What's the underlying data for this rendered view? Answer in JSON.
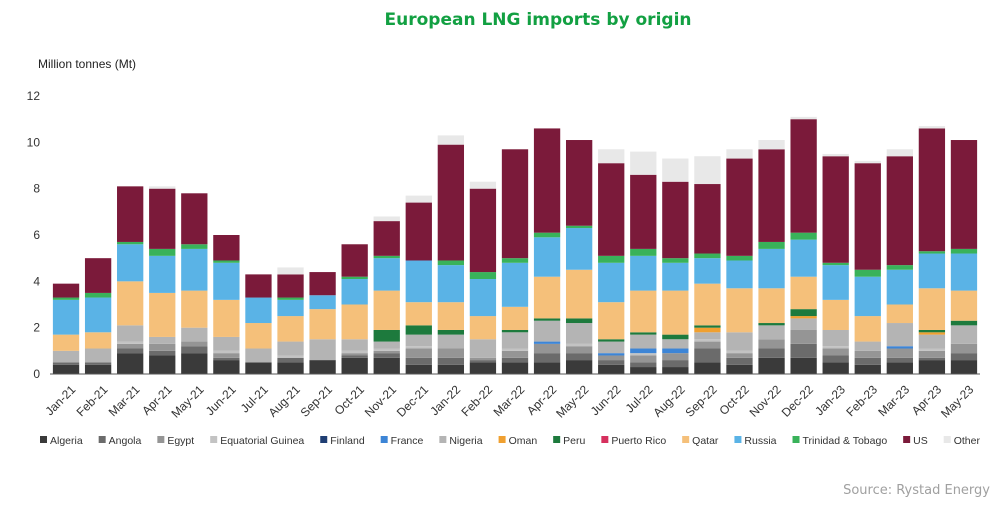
{
  "chart_data": {
    "type": "bar",
    "stacked": true,
    "title": "European LNG imports by origin",
    "ylabel": "Million tonnes (Mt)",
    "xlabel": "",
    "ylim": [
      0,
      12
    ],
    "yticks": [
      0,
      2,
      4,
      6,
      8,
      10,
      12
    ],
    "grid": false,
    "legend_position": "bottom",
    "source": "Source: Rystad Energy",
    "categories": [
      "Jan-21",
      "Feb-21",
      "Mar-21",
      "Apr-21",
      "May-21",
      "Jun-21",
      "Jul-21",
      "Aug-21",
      "Sep-21",
      "Oct-21",
      "Nov-21",
      "Dec-21",
      "Jan-22",
      "Feb-22",
      "Mar-22",
      "Apr-22",
      "May-22",
      "Jun-22",
      "Jul-22",
      "Aug-22",
      "Sep-22",
      "Oct-22",
      "Nov-22",
      "Dec-22",
      "Jan-23",
      "Feb-23",
      "Mar-23",
      "Apr-23",
      "May-23"
    ],
    "series": [
      {
        "name": "Algeria",
        "color": "#3a3a3a",
        "values": [
          0.4,
          0.4,
          0.9,
          0.8,
          0.9,
          0.6,
          0.5,
          0.5,
          0.6,
          0.7,
          0.7,
          0.4,
          0.4,
          0.5,
          0.5,
          0.5,
          0.6,
          0.4,
          0.3,
          0.3,
          0.5,
          0.4,
          0.7,
          0.7,
          0.5,
          0.4,
          0.5,
          0.6,
          0.6
        ]
      },
      {
        "name": "Angola",
        "color": "#6b6b6b",
        "values": [
          0.1,
          0.1,
          0.2,
          0.2,
          0.3,
          0.1,
          0.0,
          0.2,
          0.0,
          0.1,
          0.2,
          0.3,
          0.3,
          0.1,
          0.2,
          0.4,
          0.3,
          0.2,
          0.2,
          0.3,
          0.6,
          0.3,
          0.4,
          0.6,
          0.3,
          0.3,
          0.2,
          0.1,
          0.3
        ]
      },
      {
        "name": "Egypt",
        "color": "#959595",
        "values": [
          0.0,
          0.0,
          0.2,
          0.3,
          0.2,
          0.2,
          0.0,
          0.0,
          0.0,
          0.1,
          0.1,
          0.4,
          0.4,
          0.1,
          0.3,
          0.4,
          0.3,
          0.2,
          0.3,
          0.3,
          0.3,
          0.2,
          0.4,
          0.6,
          0.3,
          0.3,
          0.4,
          0.3,
          0.4
        ]
      },
      {
        "name": "Equatorial Guinea",
        "color": "#c3c3c3",
        "values": [
          0.0,
          0.0,
          0.1,
          0.0,
          0.0,
          0.1,
          0.0,
          0.1,
          0.0,
          0.1,
          0.1,
          0.1,
          0.0,
          0.0,
          0.1,
          0.0,
          0.1,
          0.0,
          0.1,
          0.0,
          0.1,
          0.1,
          0.0,
          0.0,
          0.1,
          0.0,
          0.0,
          0.1,
          0.0
        ]
      },
      {
        "name": "Finland",
        "color": "#1f3e73",
        "values": [
          0.0,
          0.0,
          0.0,
          0.0,
          0.0,
          0.0,
          0.0,
          0.0,
          0.0,
          0.0,
          0.0,
          0.0,
          0.0,
          0.0,
          0.0,
          0.0,
          0.0,
          0.0,
          0.0,
          0.0,
          0.0,
          0.0,
          0.0,
          0.0,
          0.0,
          0.0,
          0.0,
          0.0,
          0.0
        ]
      },
      {
        "name": "France",
        "color": "#3d85d6",
        "values": [
          0.0,
          0.0,
          0.0,
          0.0,
          0.0,
          0.0,
          0.0,
          0.0,
          0.0,
          0.0,
          0.0,
          0.0,
          0.0,
          0.0,
          0.0,
          0.1,
          0.0,
          0.1,
          0.2,
          0.2,
          0.0,
          0.0,
          0.0,
          0.0,
          0.0,
          0.0,
          0.1,
          0.0,
          0.0
        ]
      },
      {
        "name": "Nigeria",
        "color": "#b4b4b4",
        "values": [
          0.5,
          0.6,
          0.7,
          0.3,
          0.6,
          0.6,
          0.6,
          0.6,
          0.9,
          0.5,
          0.3,
          0.5,
          0.6,
          0.8,
          0.7,
          0.9,
          0.9,
          0.5,
          0.6,
          0.4,
          0.3,
          0.8,
          0.6,
          0.5,
          0.7,
          0.4,
          1.0,
          0.6,
          0.8
        ]
      },
      {
        "name": "Oman",
        "color": "#f0a030",
        "values": [
          0.0,
          0.0,
          0.0,
          0.0,
          0.0,
          0.0,
          0.0,
          0.0,
          0.0,
          0.0,
          0.0,
          0.0,
          0.0,
          0.0,
          0.0,
          0.0,
          0.0,
          0.0,
          0.0,
          0.0,
          0.2,
          0.0,
          0.0,
          0.1,
          0.0,
          0.0,
          0.0,
          0.1,
          0.0
        ]
      },
      {
        "name": "Peru",
        "color": "#1d7a3d",
        "values": [
          0.0,
          0.0,
          0.0,
          0.0,
          0.0,
          0.0,
          0.0,
          0.0,
          0.0,
          0.0,
          0.5,
          0.4,
          0.2,
          0.0,
          0.1,
          0.1,
          0.2,
          0.1,
          0.1,
          0.2,
          0.1,
          0.0,
          0.1,
          0.3,
          0.0,
          0.0,
          0.0,
          0.1,
          0.2
        ]
      },
      {
        "name": "Puerto Rico",
        "color": "#d6305e",
        "values": [
          0.0,
          0.0,
          0.0,
          0.0,
          0.0,
          0.0,
          0.0,
          0.0,
          0.0,
          0.0,
          0.0,
          0.0,
          0.0,
          0.0,
          0.0,
          0.0,
          0.0,
          0.0,
          0.0,
          0.0,
          0.0,
          0.0,
          0.0,
          0.0,
          0.0,
          0.0,
          0.0,
          0.0,
          0.0
        ]
      },
      {
        "name": "Qatar",
        "color": "#f5c07a",
        "values": [
          0.7,
          0.7,
          1.9,
          1.9,
          1.6,
          1.6,
          1.1,
          1.1,
          1.3,
          1.5,
          1.7,
          1.0,
          1.2,
          1.0,
          1.0,
          1.8,
          2.1,
          1.6,
          1.8,
          1.9,
          1.8,
          1.9,
          1.5,
          1.4,
          1.3,
          1.1,
          0.8,
          1.8,
          1.3
        ]
      },
      {
        "name": "Russia",
        "color": "#5ab3e6",
        "values": [
          1.5,
          1.5,
          1.6,
          1.6,
          1.8,
          1.6,
          1.1,
          0.7,
          0.6,
          1.1,
          1.4,
          1.8,
          1.6,
          1.6,
          1.9,
          1.7,
          1.8,
          1.7,
          1.5,
          1.2,
          1.1,
          1.2,
          1.7,
          1.6,
          1.5,
          1.7,
          1.5,
          1.5,
          1.6
        ]
      },
      {
        "name": "Trinidad & Tobago",
        "color": "#39b25a",
        "values": [
          0.1,
          0.2,
          0.1,
          0.3,
          0.2,
          0.1,
          0.0,
          0.1,
          0.0,
          0.1,
          0.1,
          0.0,
          0.2,
          0.3,
          0.2,
          0.2,
          0.1,
          0.3,
          0.3,
          0.2,
          0.2,
          0.2,
          0.3,
          0.3,
          0.1,
          0.3,
          0.2,
          0.1,
          0.2
        ]
      },
      {
        "name": "US",
        "color": "#7b1a3a",
        "values": [
          0.6,
          1.5,
          2.4,
          2.6,
          2.2,
          1.1,
          1.0,
          1.0,
          1.0,
          1.4,
          1.5,
          2.5,
          5.0,
          3.6,
          4.7,
          4.5,
          3.7,
          4.0,
          3.2,
          3.3,
          3.0,
          4.2,
          4.0,
          4.9,
          4.6,
          4.6,
          4.7,
          5.3,
          4.7
        ]
      },
      {
        "name": "Other",
        "color": "#e8e8e8",
        "values": [
          0.0,
          0.0,
          0.0,
          0.1,
          0.0,
          0.0,
          0.0,
          0.3,
          0.0,
          0.0,
          0.2,
          0.3,
          0.4,
          0.3,
          0.0,
          0.0,
          0.0,
          0.6,
          1.0,
          1.0,
          1.2,
          0.4,
          0.4,
          0.1,
          0.1,
          0.1,
          0.3,
          0.1,
          0.0
        ]
      }
    ]
  }
}
